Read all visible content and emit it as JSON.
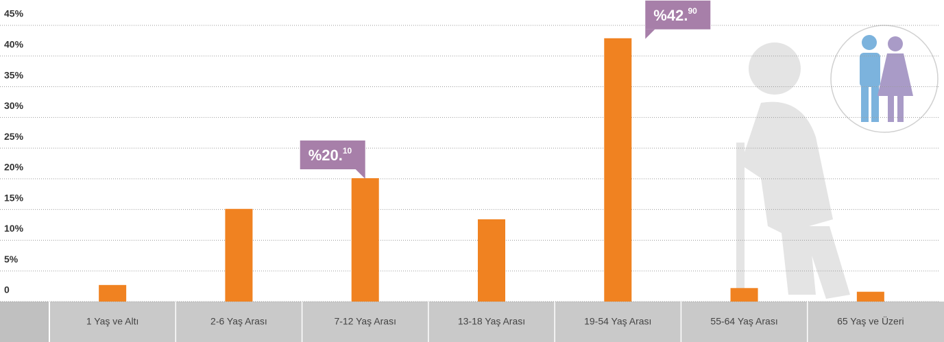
{
  "chart_data": {
    "type": "bar",
    "categories": [
      "1 Yaş ve Altı",
      "2-6 Yaş Arası",
      "7-12 Yaş Arası",
      "13-18 Yaş Arası",
      "19-54 Yaş Arası",
      "55-64 Yaş Arası",
      "65 Yaş ve Üzeri"
    ],
    "values": [
      2.7,
      15.1,
      20.1,
      13.4,
      42.9,
      2.2,
      1.6
    ],
    "value_labels": [
      null,
      null,
      "%20.10",
      null,
      "%42.90",
      null,
      null
    ],
    "color": "#f08221",
    "ylim": [
      0,
      45
    ],
    "yticks": [
      0,
      {
        "value": 5,
        "label": "5%"
      },
      {
        "value": 10,
        "label": "10%"
      },
      {
        "value": 15,
        "label": "15%"
      },
      {
        "value": 20,
        "label": "20%"
      },
      {
        "value": 25,
        "label": "25%"
      },
      {
        "value": 30,
        "label": "30%"
      },
      {
        "value": 35,
        "label": "35%"
      },
      {
        "value": 40,
        "label": "40%"
      },
      {
        "value": 45,
        "label": "45%"
      }
    ],
    "grid": true
  }
}
